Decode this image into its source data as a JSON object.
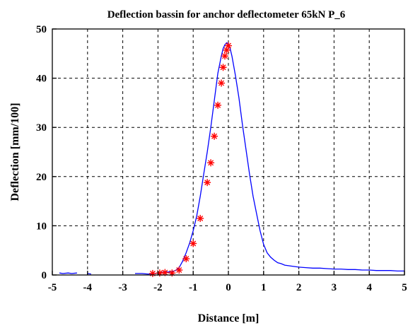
{
  "chart_data": {
    "type": "scatter",
    "title": "Deflection bassin for anchor deflectometer  65kN P_6",
    "xlabel": "Distance [m]",
    "ylabel": "Deflection [mm/100]",
    "xlim": [
      -5,
      5
    ],
    "ylim": [
      0,
      50
    ],
    "xticks": [
      "-5",
      "-4",
      "-3",
      "-2",
      "-1",
      "0",
      "1",
      "2",
      "3",
      "4",
      "5"
    ],
    "yticks": [
      "0",
      "10",
      "20",
      "30",
      "40",
      "50"
    ],
    "grid": true,
    "colors": {
      "line": "#0000ff",
      "markers": "#ff0000",
      "frame": "#000000"
    },
    "series": [
      {
        "type": "line",
        "x": [
          -4.8,
          -4.7,
          -4.55,
          -4.45,
          -4.3,
          -4.0,
          -3.9,
          -3.5,
          -3.0,
          -2.65,
          -2.45,
          -2.3,
          -2.2,
          -2.1,
          -2.0,
          -1.9,
          -1.8,
          -1.7,
          -1.6,
          -1.5,
          -1.4,
          -1.3,
          -1.2,
          -1.1,
          -1.0,
          -0.9,
          -0.8,
          -0.7,
          -0.6,
          -0.5,
          -0.4,
          -0.3,
          -0.2,
          -0.15,
          -0.1,
          -0.05,
          0.0,
          0.05,
          0.1,
          0.2,
          0.3,
          0.4,
          0.5,
          0.6,
          0.7,
          0.8,
          0.9,
          1.0,
          1.1,
          1.2,
          1.3,
          1.4,
          1.5,
          1.6,
          1.8,
          2.0,
          2.2,
          2.4,
          2.6,
          2.8,
          3.0,
          3.2,
          3.4,
          3.6,
          3.8,
          4.0,
          4.2,
          4.4,
          4.6,
          4.8,
          5.0
        ],
        "y": [
          0.4,
          0.3,
          0.4,
          0.3,
          0.4,
          0.3,
          0.2,
          0.2,
          0.2,
          0.3,
          0.3,
          0.2,
          0.2,
          0.3,
          0.4,
          0.5,
          0.6,
          0.6,
          0.7,
          0.9,
          1.5,
          2.8,
          4.5,
          6.5,
          9.0,
          12.0,
          16.0,
          20.5,
          25.0,
          30.0,
          35.5,
          41.0,
          44.5,
          46.0,
          46.8,
          47.2,
          47.0,
          46.0,
          44.5,
          40.5,
          36.0,
          30.5,
          25.5,
          20.5,
          16.0,
          12.5,
          9.0,
          6.2,
          4.5,
          3.6,
          3.0,
          2.5,
          2.3,
          2.0,
          1.8,
          1.6,
          1.5,
          1.4,
          1.4,
          1.3,
          1.2,
          1.2,
          1.1,
          1.1,
          1.0,
          1.0,
          0.9,
          0.9,
          0.9,
          0.8,
          0.8
        ]
      },
      {
        "type": "scatter",
        "x": [
          -2.15,
          -1.95,
          -1.8,
          -1.6,
          -1.4,
          -1.2,
          -1.0,
          -0.8,
          -0.6,
          -0.5,
          -0.4,
          -0.3,
          -0.2,
          -0.15,
          -0.1,
          -0.05,
          0.0
        ],
        "y": [
          0.3,
          0.4,
          0.5,
          0.4,
          1.0,
          3.3,
          6.4,
          11.5,
          18.8,
          22.8,
          28.2,
          34.5,
          39.0,
          42.2,
          44.5,
          45.7,
          46.6
        ]
      }
    ]
  }
}
